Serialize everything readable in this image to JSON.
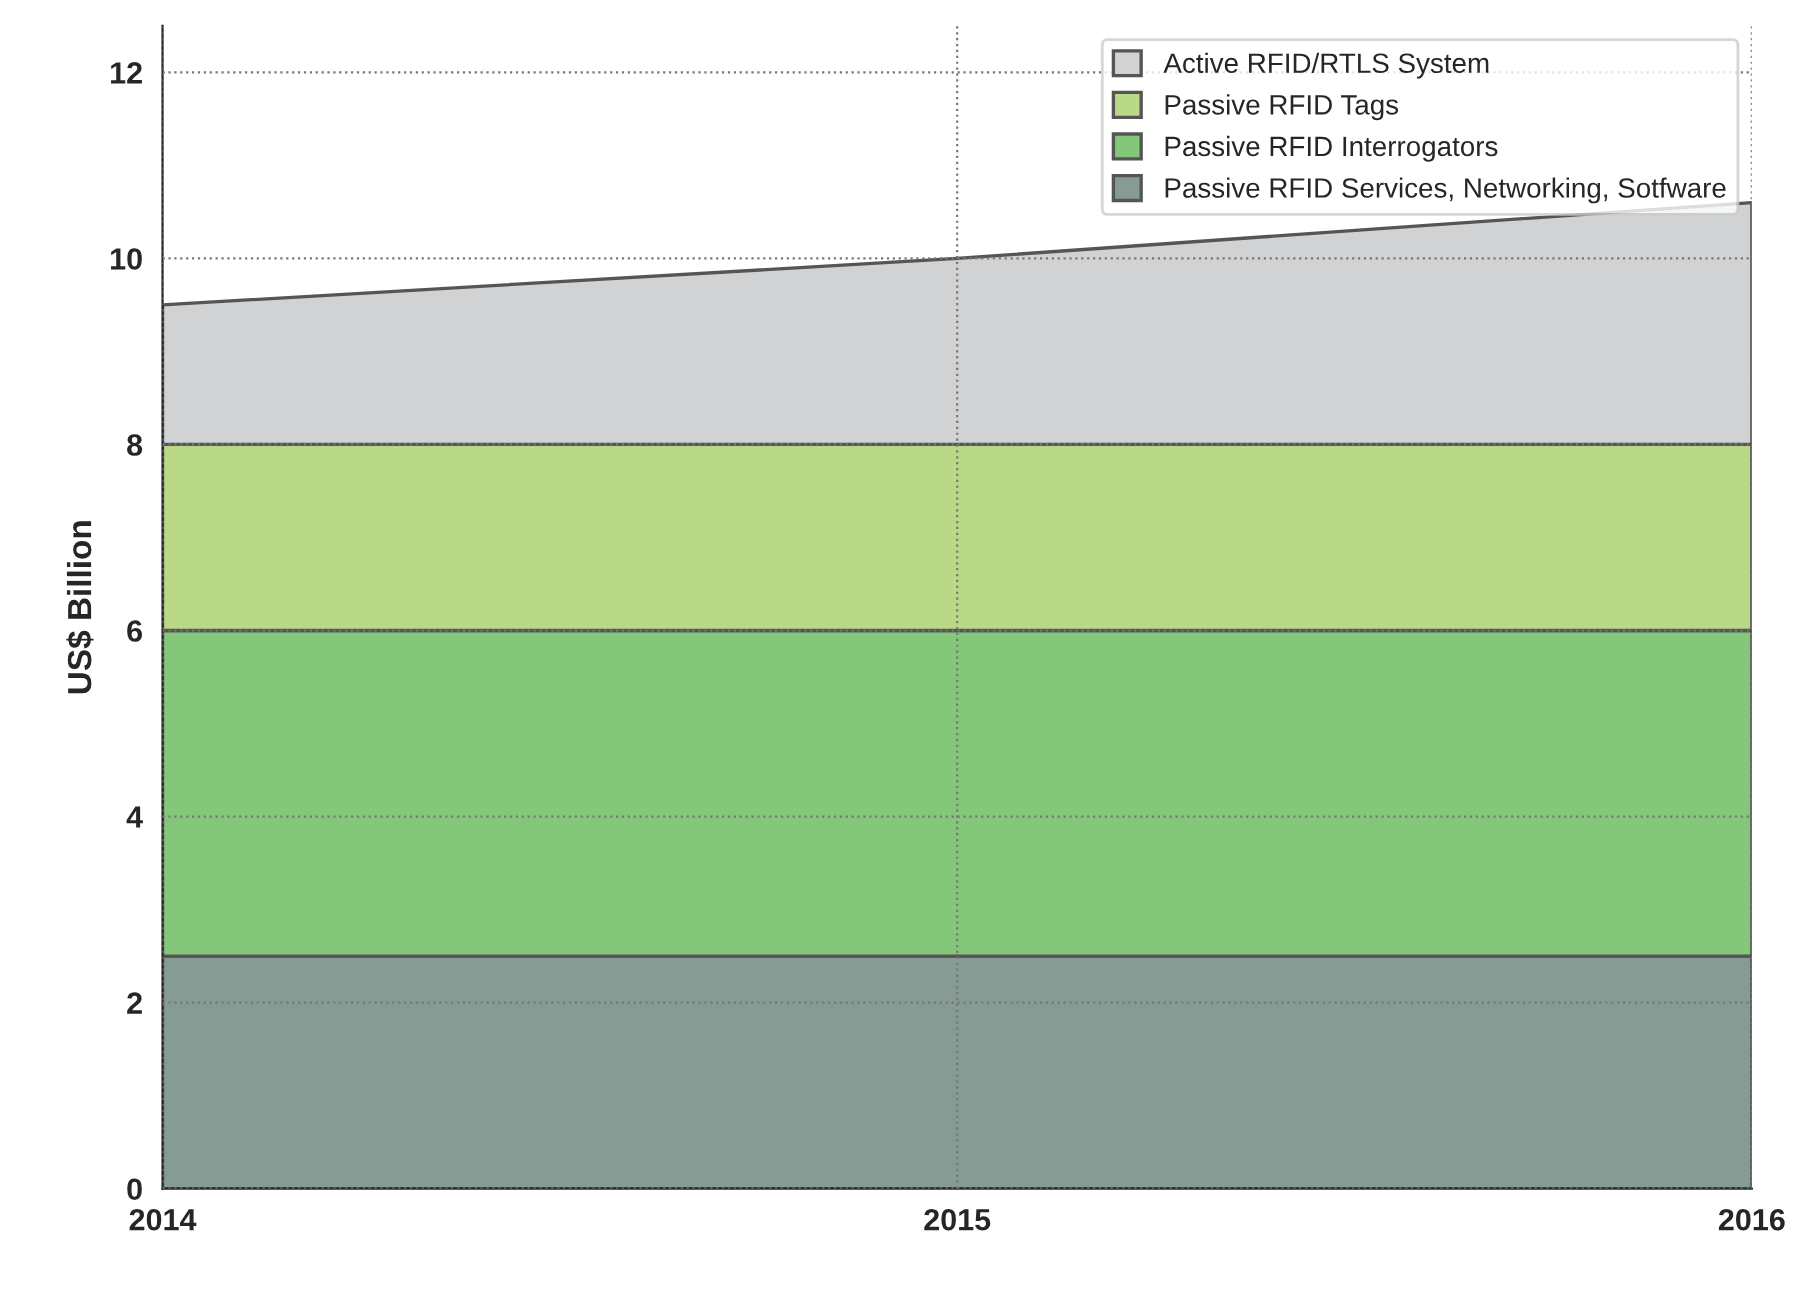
{
  "chart_data": {
    "type": "area",
    "stacked": true,
    "ylabel": "US$ Billion",
    "categories": [
      "2014",
      "2015",
      "2016"
    ],
    "series": [
      {
        "name": "Passive RFID Services, Networking, Sotfware",
        "color": "#869b93",
        "values": [
          2.5,
          2.5,
          2.5
        ]
      },
      {
        "name": "Passive RFID Interrogators",
        "color": "#84c67a",
        "values": [
          3.5,
          3.5,
          3.5
        ]
      },
      {
        "name": "Passive RFID Tags",
        "color": "#b9d986",
        "values": [
          2,
          2,
          2
        ]
      },
      {
        "name": "Active RFID/RTLS System",
        "color": "#d0d2d4",
        "values": [
          1.5,
          2,
          2.6
        ]
      }
    ],
    "ylim": [
      0,
      12.5
    ],
    "yticks": [
      0,
      2,
      4,
      6,
      8,
      10,
      12
    ],
    "grid": true,
    "legend": "top right"
  }
}
